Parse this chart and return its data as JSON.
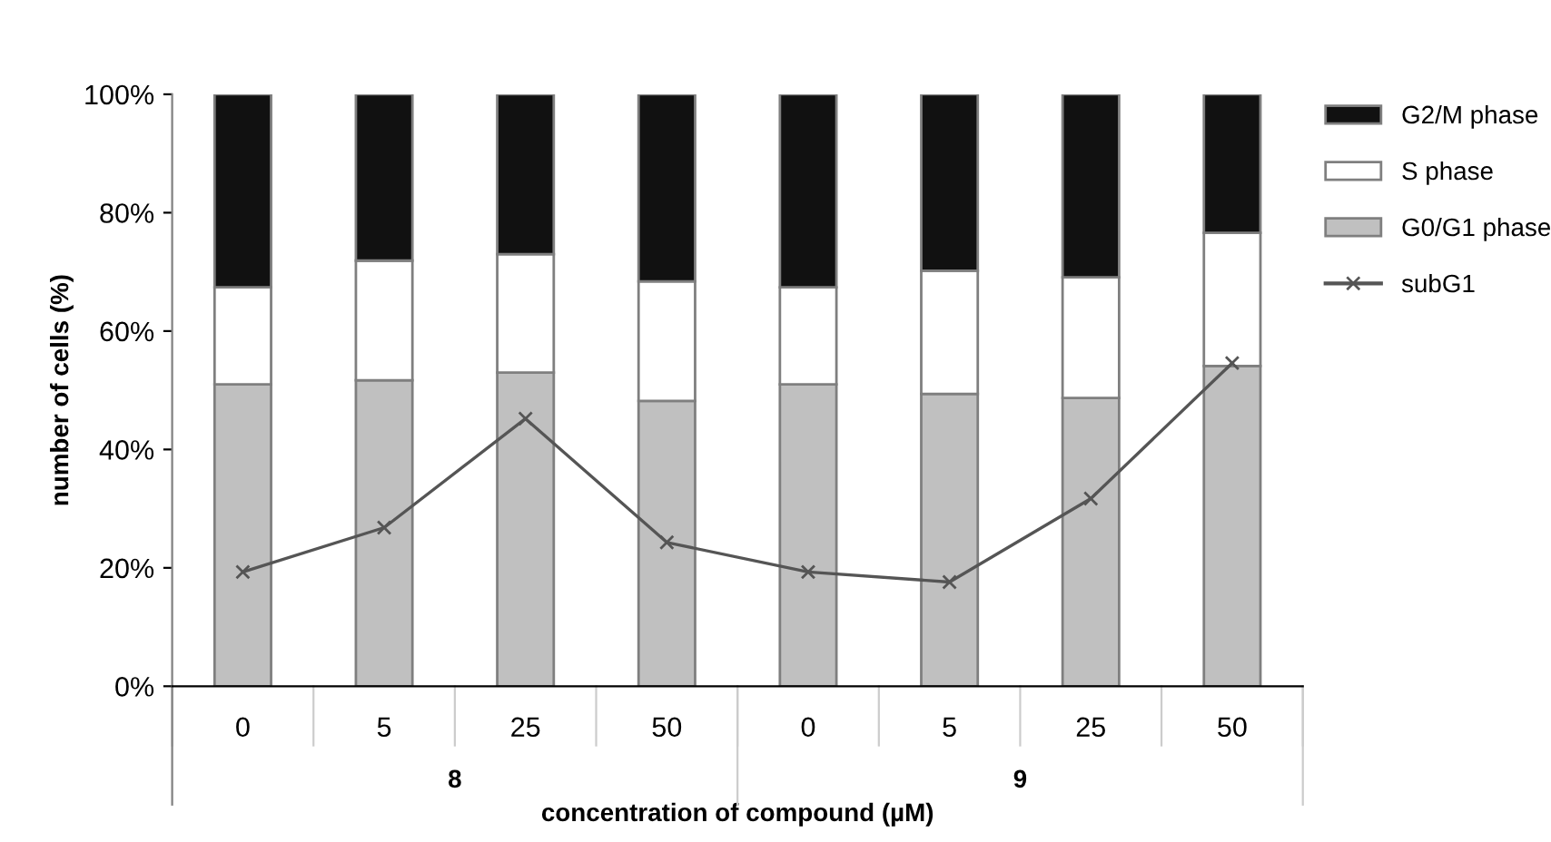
{
  "chart_data": {
    "type": "bar",
    "stacked": true,
    "categories": [
      "0",
      "5",
      "25",
      "50",
      "0",
      "5",
      "25",
      "50"
    ],
    "series": [
      {
        "name": "G0/G1 phase",
        "color": "#c0c0c0",
        "values": [
          51.0,
          51.7,
          53.0,
          48.2,
          51.0,
          49.4,
          48.7,
          54.1
        ]
      },
      {
        "name": "S phase",
        "color": "#ffffff",
        "values": [
          16.4,
          20.2,
          20.0,
          20.2,
          16.4,
          20.8,
          20.4,
          22.5
        ]
      },
      {
        "name": "G2/M phase",
        "color": "#111111",
        "values": [
          32.6,
          28.1,
          27.0,
          31.6,
          32.6,
          29.8,
          30.9,
          23.4
        ]
      },
      {
        "name": "subG1",
        "type": "line",
        "color": "#555555",
        "marker": "cross",
        "values": [
          19.3,
          26.8,
          45.2,
          24.3,
          19.3,
          17.6,
          31.7,
          54.6
        ]
      }
    ],
    "ylim": [
      0,
      100
    ],
    "yticks": [
      {
        "value": 0,
        "label": "0%"
      },
      {
        "value": 20,
        "label": "20%"
      },
      {
        "value": 40,
        "label": "40%"
      },
      {
        "value": 60,
        "label": "60%"
      },
      {
        "value": 80,
        "label": "80%"
      },
      {
        "value": 100,
        "label": "100%"
      }
    ],
    "xlabel": "concentration of compound (µM)",
    "ylabel": "number of cells (%)",
    "annotations": [
      "8",
      "9"
    ],
    "legend": "right",
    "grid": false
  }
}
